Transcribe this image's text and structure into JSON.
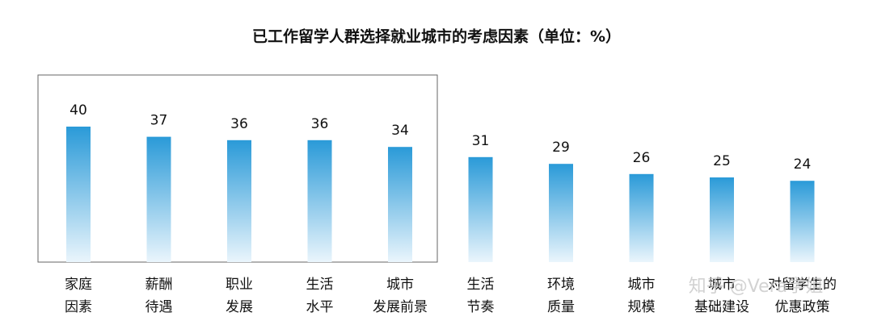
{
  "chart_data": {
    "type": "bar",
    "title": "已工作留学人群选择就业城市的考虑因素（单位：%）",
    "categories": [
      [
        "家庭",
        "因素"
      ],
      [
        "薪酬",
        "待遇"
      ],
      [
        "职业",
        "发展"
      ],
      [
        "生活",
        "水平"
      ],
      [
        "城市",
        "发展前景"
      ],
      [
        "生活",
        "节奏"
      ],
      [
        "环境",
        "质量"
      ],
      [
        "城市",
        "规模"
      ],
      [
        "城市",
        "基础建设"
      ],
      [
        "对留学生的",
        "优惠政策"
      ]
    ],
    "values": [
      40,
      37,
      36,
      36,
      34,
      31,
      29,
      26,
      25,
      24
    ],
    "color": "#2a9ad8",
    "watermark": "知乎 @Vera学姐"
  }
}
